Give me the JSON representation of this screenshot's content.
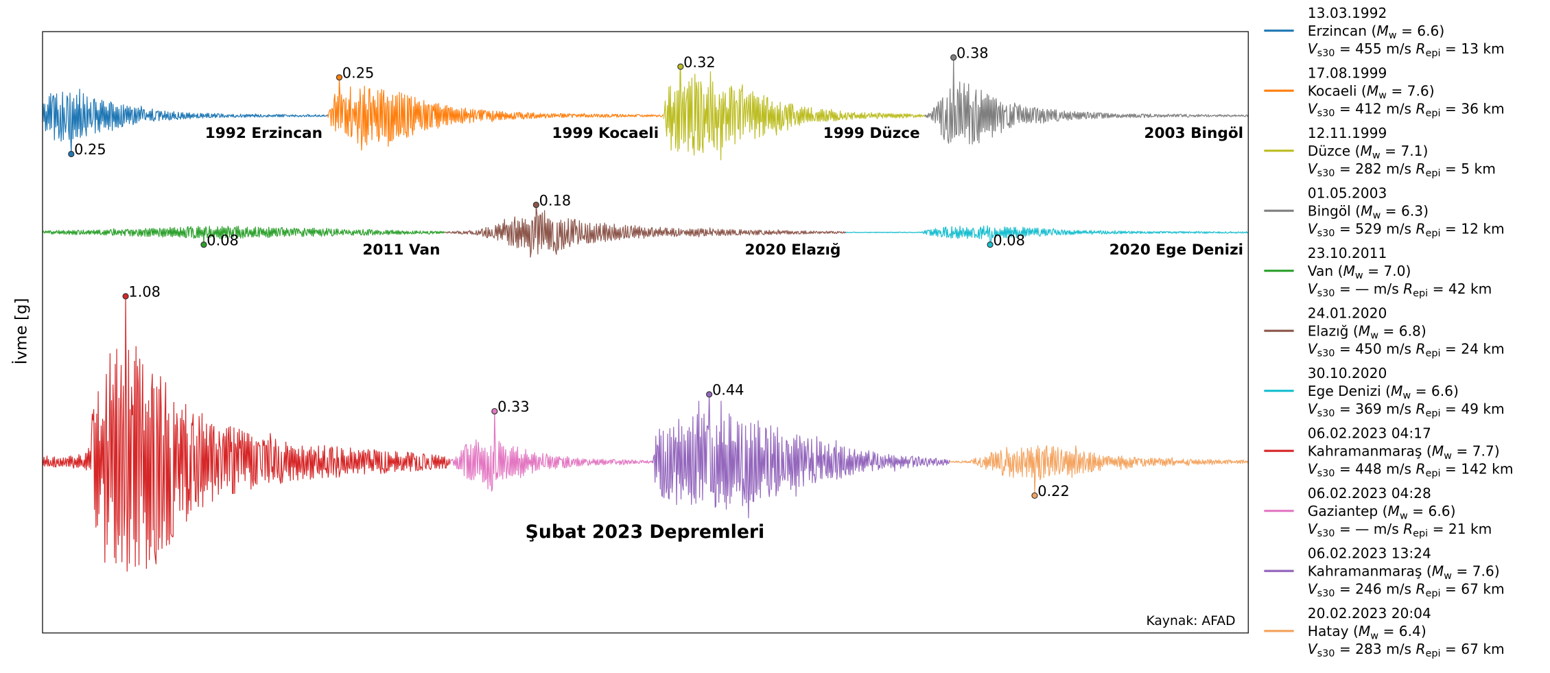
{
  "chart_data": {
    "type": "line",
    "ylabel": "İvme [g]",
    "grid": false,
    "legend_position": "right",
    "source_note": "Kaynak: AFAD",
    "legend_format": {
      "open_paren": " (",
      "mw_symbol": "M",
      "mw_subscript": "w",
      "equals": " = ",
      "close_paren": ")",
      "vs_symbol": "V",
      "vs_subscript": "s30",
      "vs_unit": " m/s ",
      "r_symbol": "R",
      "r_subscript": "epi",
      "r_unit": " km"
    },
    "rows": [
      {
        "series": [
          {
            "date": "13.03.1992",
            "name": "Erzincan",
            "mw": "6.6",
            "vs30": "455",
            "repi": "13",
            "color": "#1f77b4",
            "trace_label": "1992 Erzincan",
            "peak": -0.25,
            "peak_label": "0.25"
          },
          {
            "date": "17.08.1999",
            "name": "Kocaeli",
            "mw": "7.6",
            "vs30": "412",
            "repi": "36",
            "color": "#ff7f0e",
            "trace_label": "1999 Kocaeli",
            "peak": 0.25,
            "peak_label": "0.25"
          },
          {
            "date": "12.11.1999",
            "name": "Düzce",
            "mw": "7.1",
            "vs30": "282",
            "repi": "5",
            "color": "#bcbd22",
            "trace_label": "1999 Düzce",
            "peak": 0.32,
            "peak_label": "0.32"
          },
          {
            "date": "01.05.2003",
            "name": "Bingöl",
            "mw": "6.3",
            "vs30": "529",
            "repi": "12",
            "color": "#7f7f7f",
            "trace_label": "2003 Bingöl",
            "peak": 0.38,
            "peak_label": "0.38"
          }
        ]
      },
      {
        "series": [
          {
            "date": "23.10.2011",
            "name": "Van",
            "mw": "7.0",
            "vs30": "—",
            "repi": "42",
            "color": "#2ca02c",
            "trace_label": "2011 Van",
            "peak": -0.08,
            "peak_label": "0.08"
          },
          {
            "date": "24.01.2020",
            "name": "Elazığ",
            "mw": "6.8",
            "vs30": "450",
            "repi": "24",
            "color": "#8c564b",
            "trace_label": "2020 Elazığ",
            "peak": 0.18,
            "peak_label": "0.18"
          },
          {
            "date": "30.10.2020",
            "name": "Ege Denizi",
            "mw": "6.6",
            "vs30": "369",
            "repi": "49",
            "color": "#17becf",
            "trace_label": "2020 Ege Denizi",
            "peak": -0.08,
            "peak_label": "0.08"
          }
        ]
      },
      {
        "group_label": "Şubat 2023 Depremleri",
        "series": [
          {
            "date": "06.02.2023 04:17",
            "name": "Kahramanmaraş",
            "mw": "7.7",
            "vs30": "448",
            "repi": "142",
            "color": "#d62728",
            "peak": 1.08,
            "peak_label": "1.08"
          },
          {
            "date": "06.02.2023 04:28",
            "name": "Gaziantep",
            "mw": "6.6",
            "vs30": "—",
            "repi": "21",
            "color": "#e377c2",
            "peak": 0.33,
            "peak_label": "0.33"
          },
          {
            "date": "06.02.2023 13:24",
            "name": "Kahramanmaraş",
            "mw": "7.6",
            "vs30": "246",
            "repi": "67",
            "color": "#9467bd",
            "peak": 0.44,
            "peak_label": "0.44"
          },
          {
            "date": "20.02.2023 20:04",
            "name": "Hatay",
            "mw": "6.4",
            "vs30": "283",
            "repi": "67",
            "color": "#f4a460",
            "peak": -0.22,
            "peak_label": "0.22"
          }
        ]
      }
    ]
  }
}
